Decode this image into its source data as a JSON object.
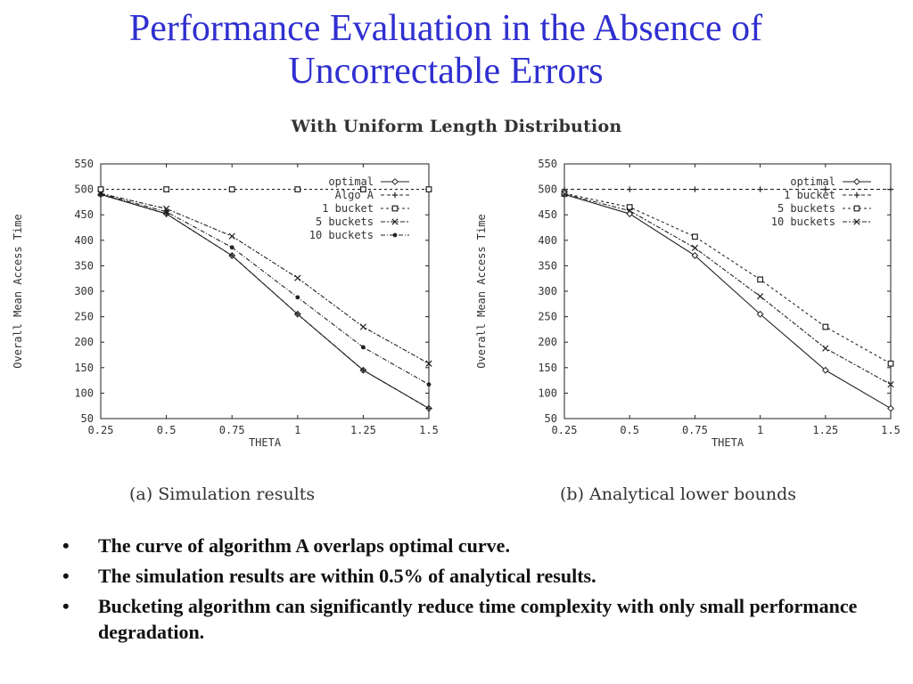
{
  "slide": {
    "title_line1": "Performance Evaluation in the Absence of",
    "title_line2": "Uncorrectable Errors",
    "subtitle": "With Uniform Length Distribution",
    "bullets": [
      "The curve of algorithm A  overlaps optimal curve.",
      "The simulation results are within 0.5% of analytical results.",
      "Bucketing algorithm can significantly reduce time complexity with only small performance degradation."
    ]
  },
  "chart_data": [
    {
      "type": "line",
      "caption": "(a) Simulation results",
      "xlabel": "THETA",
      "ylabel": "Overall Mean Access Time",
      "xlim": [
        0.25,
        1.5
      ],
      "ylim": [
        50,
        550
      ],
      "xticks": [
        "0.25",
        "0.5",
        "0.75",
        "1",
        "1.25",
        "1.5"
      ],
      "yticks": [
        "50",
        "100",
        "150",
        "200",
        "250",
        "300",
        "350",
        "400",
        "450",
        "500",
        "550"
      ],
      "x": [
        0.25,
        0.5,
        0.75,
        1.0,
        1.25,
        1.5
      ],
      "legend_position": "top-right",
      "series": [
        {
          "name": "optimal",
          "values": [
            490,
            452,
            370,
            255,
            145,
            70
          ],
          "marker": "diamond",
          "dash": ""
        },
        {
          "name": "Algo A",
          "values": [
            490,
            452,
            370,
            255,
            145,
            70
          ],
          "marker": "plus",
          "dash": "4,3"
        },
        {
          "name": "1 bucket",
          "values": [
            500,
            500,
            500,
            500,
            500,
            500
          ],
          "marker": "square",
          "dash": "3,3"
        },
        {
          "name": "5 buckets",
          "values": [
            492,
            462,
            408,
            326,
            230,
            158
          ],
          "marker": "x",
          "dash": "5,2,2,2"
        },
        {
          "name": "10 buckets",
          "values": [
            491,
            456,
            386,
            288,
            190,
            117
          ],
          "marker": "dot",
          "dash": "5,2,1,2"
        }
      ]
    },
    {
      "type": "line",
      "caption": "(b) Analytical lower bounds",
      "xlabel": "THETA",
      "ylabel": "Overall Mean Access Time",
      "xlim": [
        0.25,
        1.5
      ],
      "ylim": [
        50,
        550
      ],
      "xticks": [
        "0.25",
        "0.5",
        "0.75",
        "1",
        "1.25",
        "1.5"
      ],
      "yticks": [
        "50",
        "100",
        "150",
        "200",
        "250",
        "300",
        "350",
        "400",
        "450",
        "500",
        "550"
      ],
      "x": [
        0.25,
        0.5,
        0.75,
        1.0,
        1.25,
        1.5
      ],
      "legend_position": "top-right",
      "series": [
        {
          "name": "optimal",
          "values": [
            490,
            452,
            370,
            255,
            145,
            70
          ],
          "marker": "diamond",
          "dash": ""
        },
        {
          "name": "1 bucket",
          "values": [
            500,
            500,
            500,
            500,
            500,
            500
          ],
          "marker": "plus",
          "dash": "4,3"
        },
        {
          "name": "5 buckets",
          "values": [
            492,
            465,
            407,
            323,
            230,
            158
          ],
          "marker": "square",
          "dash": "3,3"
        },
        {
          "name": "10 buckets",
          "values": [
            491,
            458,
            385,
            290,
            188,
            117
          ],
          "marker": "x",
          "dash": "5,2,2,2"
        }
      ]
    }
  ]
}
